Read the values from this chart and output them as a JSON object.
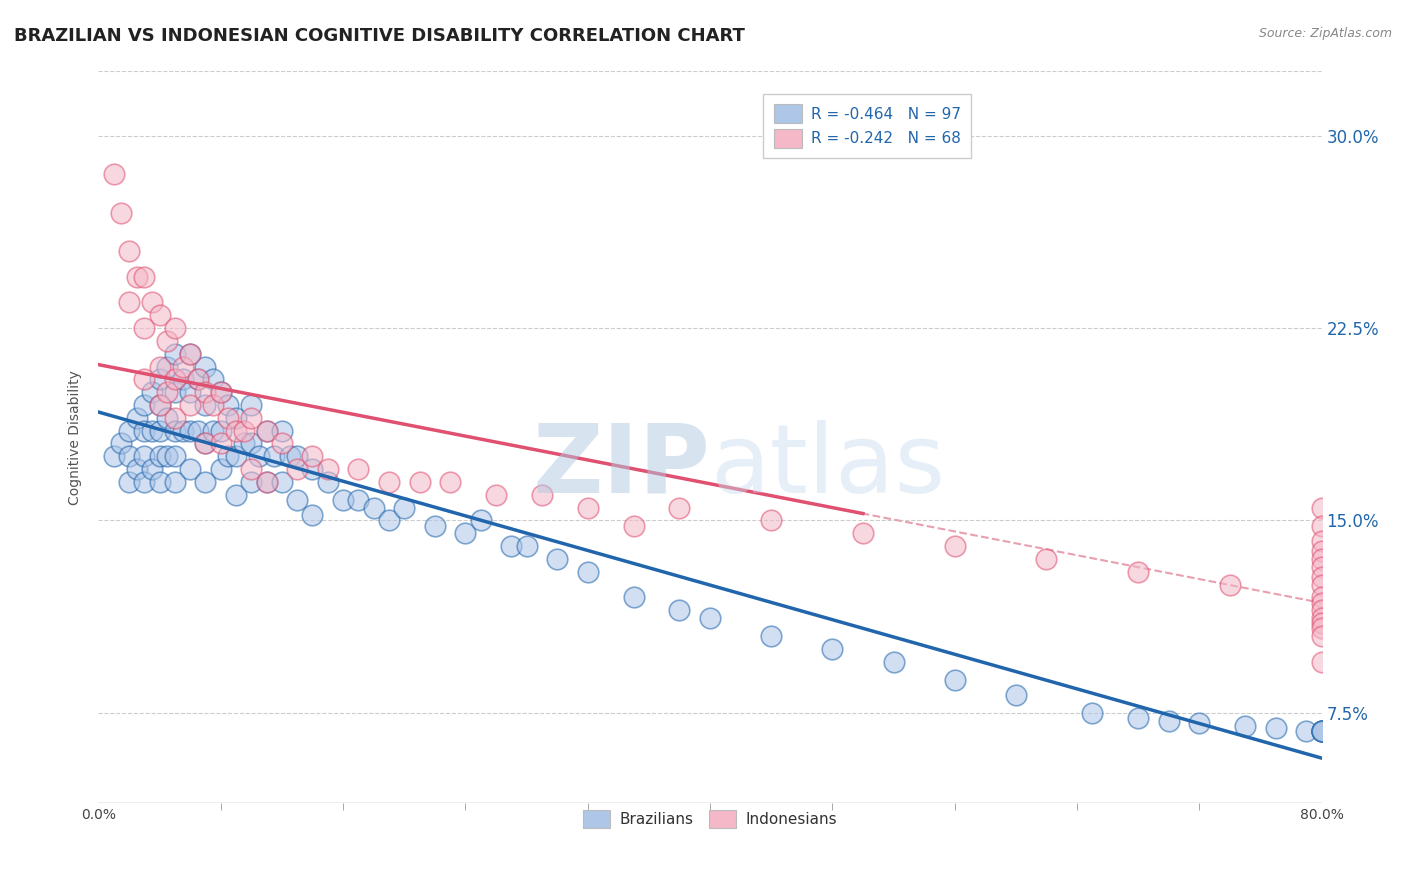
{
  "title": "BRAZILIAN VS INDONESIAN COGNITIVE DISABILITY CORRELATION CHART",
  "source_text": "Source: ZipAtlas.com",
  "ylabel": "Cognitive Disability",
  "xlim": [
    0.0,
    0.8
  ],
  "ylim": [
    0.04,
    0.325
  ],
  "yticks": [
    0.075,
    0.15,
    0.225,
    0.3
  ],
  "yticklabels": [
    "7.5%",
    "15.0%",
    "22.5%",
    "30.0%"
  ],
  "blue_color": "#aec6e8",
  "pink_color": "#f4b8c8",
  "blue_line_color": "#2166ac",
  "pink_line_color": "#e05070",
  "dash_line_color": "#e8a0b0",
  "R_blue": -0.464,
  "N_blue": 97,
  "R_pink": -0.242,
  "N_pink": 68,
  "watermark_zip": "ZIP",
  "watermark_atlas": "atlas",
  "background_color": "#ffffff",
  "grid_color": "#cccccc",
  "title_fontsize": 13,
  "axis_label_fontsize": 10,
  "tick_fontsize": 10,
  "legend_fontsize": 11,
  "blue_x": [
    0.01,
    0.015,
    0.02,
    0.02,
    0.02,
    0.025,
    0.025,
    0.03,
    0.03,
    0.03,
    0.03,
    0.035,
    0.035,
    0.035,
    0.04,
    0.04,
    0.04,
    0.04,
    0.04,
    0.045,
    0.045,
    0.045,
    0.05,
    0.05,
    0.05,
    0.05,
    0.05,
    0.055,
    0.055,
    0.06,
    0.06,
    0.06,
    0.06,
    0.065,
    0.065,
    0.07,
    0.07,
    0.07,
    0.07,
    0.075,
    0.075,
    0.08,
    0.08,
    0.08,
    0.085,
    0.085,
    0.09,
    0.09,
    0.09,
    0.095,
    0.1,
    0.1,
    0.1,
    0.105,
    0.11,
    0.11,
    0.115,
    0.12,
    0.12,
    0.125,
    0.13,
    0.13,
    0.14,
    0.14,
    0.15,
    0.16,
    0.17,
    0.18,
    0.19,
    0.2,
    0.22,
    0.24,
    0.25,
    0.27,
    0.28,
    0.3,
    0.32,
    0.35,
    0.38,
    0.4,
    0.44,
    0.48,
    0.52,
    0.56,
    0.6,
    0.65,
    0.68,
    0.7,
    0.72,
    0.75,
    0.77,
    0.79,
    0.8,
    0.8,
    0.8,
    0.8,
    0.8
  ],
  "blue_y": [
    0.175,
    0.18,
    0.185,
    0.175,
    0.165,
    0.19,
    0.17,
    0.195,
    0.185,
    0.175,
    0.165,
    0.2,
    0.185,
    0.17,
    0.205,
    0.195,
    0.185,
    0.175,
    0.165,
    0.21,
    0.19,
    0.175,
    0.215,
    0.2,
    0.185,
    0.175,
    0.165,
    0.205,
    0.185,
    0.215,
    0.2,
    0.185,
    0.17,
    0.205,
    0.185,
    0.21,
    0.195,
    0.18,
    0.165,
    0.205,
    0.185,
    0.2,
    0.185,
    0.17,
    0.195,
    0.175,
    0.19,
    0.175,
    0.16,
    0.18,
    0.195,
    0.18,
    0.165,
    0.175,
    0.185,
    0.165,
    0.175,
    0.185,
    0.165,
    0.175,
    0.175,
    0.158,
    0.17,
    0.152,
    0.165,
    0.158,
    0.158,
    0.155,
    0.15,
    0.155,
    0.148,
    0.145,
    0.15,
    0.14,
    0.14,
    0.135,
    0.13,
    0.12,
    0.115,
    0.112,
    0.105,
    0.1,
    0.095,
    0.088,
    0.082,
    0.075,
    0.073,
    0.072,
    0.071,
    0.07,
    0.069,
    0.068,
    0.068,
    0.068,
    0.068,
    0.068,
    0.068
  ],
  "pink_x": [
    0.01,
    0.015,
    0.02,
    0.02,
    0.025,
    0.03,
    0.03,
    0.03,
    0.035,
    0.04,
    0.04,
    0.04,
    0.045,
    0.045,
    0.05,
    0.05,
    0.05,
    0.055,
    0.06,
    0.06,
    0.065,
    0.07,
    0.07,
    0.075,
    0.08,
    0.08,
    0.085,
    0.09,
    0.095,
    0.1,
    0.1,
    0.11,
    0.11,
    0.12,
    0.13,
    0.14,
    0.15,
    0.17,
    0.19,
    0.21,
    0.23,
    0.26,
    0.29,
    0.32,
    0.35,
    0.38,
    0.44,
    0.5,
    0.56,
    0.62,
    0.68,
    0.74,
    0.8,
    0.8,
    0.8,
    0.8,
    0.8,
    0.8,
    0.8,
    0.8,
    0.8,
    0.8,
    0.8,
    0.8,
    0.8,
    0.8,
    0.8,
    0.8
  ],
  "pink_y": [
    0.285,
    0.27,
    0.255,
    0.235,
    0.245,
    0.245,
    0.225,
    0.205,
    0.235,
    0.23,
    0.21,
    0.195,
    0.22,
    0.2,
    0.225,
    0.205,
    0.19,
    0.21,
    0.215,
    0.195,
    0.205,
    0.2,
    0.18,
    0.195,
    0.2,
    0.18,
    0.19,
    0.185,
    0.185,
    0.19,
    0.17,
    0.185,
    0.165,
    0.18,
    0.17,
    0.175,
    0.17,
    0.17,
    0.165,
    0.165,
    0.165,
    0.16,
    0.16,
    0.155,
    0.148,
    0.155,
    0.15,
    0.145,
    0.14,
    0.135,
    0.13,
    0.125,
    0.155,
    0.148,
    0.142,
    0.138,
    0.135,
    0.132,
    0.128,
    0.125,
    0.12,
    0.118,
    0.115,
    0.112,
    0.11,
    0.108,
    0.105,
    0.095
  ]
}
